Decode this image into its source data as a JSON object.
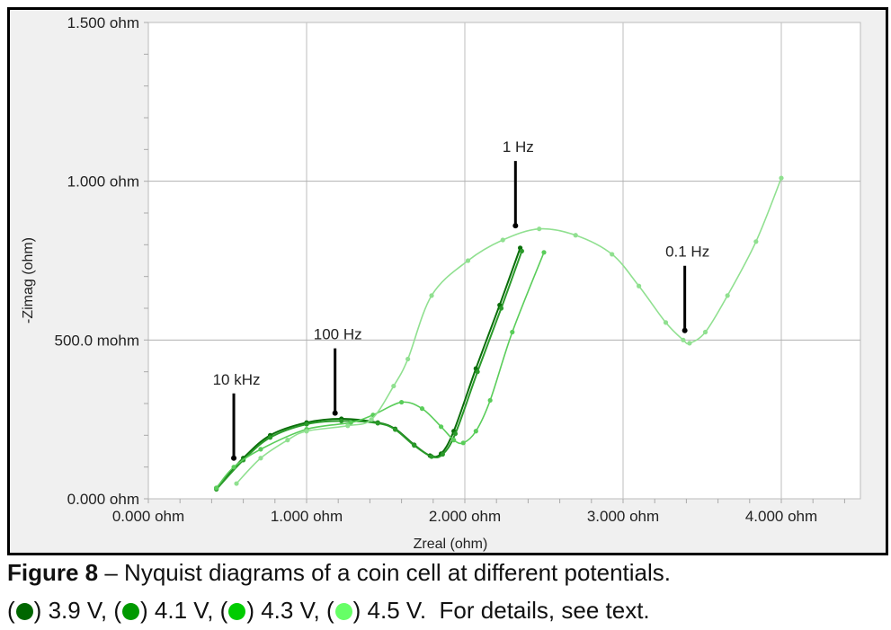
{
  "caption": {
    "figure_label": "Figure 8",
    "text": " – Nyquist diagrams of a coin cell at different potentials.",
    "legend": [
      {
        "label": "3.9 V,",
        "color": "#006600"
      },
      {
        "label": "4.1 V,",
        "color": "#009900"
      },
      {
        "label": "4.3 V,",
        "color": "#00cc00"
      },
      {
        "label": "4.5 V.",
        "color": "#66ff66"
      }
    ],
    "details": "For details, see text."
  },
  "chart_data": {
    "type": "scatter",
    "title": "",
    "xlabel": "Zreal (ohm)",
    "ylabel": "-Zimag (ohm)",
    "xlim": [
      0,
      4.5
    ],
    "ylim": [
      0,
      1.5
    ],
    "grid": true,
    "x_ticks": [
      {
        "value": 0,
        "label": "0.000 ohm"
      },
      {
        "value": 1,
        "label": "1.000 ohm"
      },
      {
        "value": 2,
        "label": "2.000 ohm"
      },
      {
        "value": 3,
        "label": "3.000 ohm"
      },
      {
        "value": 4,
        "label": "4.000 ohm"
      }
    ],
    "y_ticks": [
      {
        "value": 0,
        "label": "0.000 ohm"
      },
      {
        "value": 0.5,
        "label": "500.0 mohm"
      },
      {
        "value": 1.0,
        "label": "1.000 ohm"
      },
      {
        "value": 1.5,
        "label": "1.500 ohm"
      }
    ],
    "series": [
      {
        "name": "3.9 V",
        "line_color": "#0a6e0a",
        "x": [
          0.43,
          0.6,
          0.77,
          1.0,
          1.22,
          1.45,
          1.56,
          1.68,
          1.78,
          1.85,
          1.93,
          2.07,
          2.22,
          2.35
        ],
        "y": [
          0.034,
          0.128,
          0.2,
          0.24,
          0.252,
          0.24,
          0.22,
          0.17,
          0.136,
          0.142,
          0.213,
          0.41,
          0.61,
          0.79
        ]
      },
      {
        "name": "4.1 V",
        "line_color": "#2a9a2a",
        "x": [
          0.43,
          0.6,
          0.77,
          1.0,
          1.22,
          1.45,
          1.56,
          1.68,
          1.79,
          1.86,
          1.94,
          2.08,
          2.23,
          2.36
        ],
        "y": [
          0.03,
          0.122,
          0.193,
          0.235,
          0.245,
          0.238,
          0.218,
          0.168,
          0.133,
          0.14,
          0.205,
          0.4,
          0.6,
          0.78
        ]
      },
      {
        "name": "4.3 V",
        "line_color": "#5acd5a",
        "x": [
          0.43,
          0.54,
          0.71,
          1.0,
          1.28,
          1.42,
          1.6,
          1.73,
          1.85,
          1.93,
          1.99,
          2.07,
          2.16,
          2.3,
          2.5
        ],
        "y": [
          0.034,
          0.1,
          0.156,
          0.219,
          0.24,
          0.264,
          0.304,
          0.284,
          0.227,
          0.185,
          0.176,
          0.213,
          0.31,
          0.525,
          0.776
        ]
      },
      {
        "name": "4.5 V",
        "line_color": "#90e090",
        "x": [
          0.557,
          0.71,
          0.88,
          1.0,
          1.26,
          1.41,
          1.55,
          1.64,
          1.79,
          2.02,
          2.24,
          2.47,
          2.7,
          2.93,
          3.1,
          3.27,
          3.38,
          3.42,
          3.52,
          3.66,
          3.84,
          4.0
        ],
        "y": [
          0.048,
          0.128,
          0.185,
          0.213,
          0.23,
          0.25,
          0.355,
          0.44,
          0.64,
          0.75,
          0.815,
          0.85,
          0.83,
          0.77,
          0.67,
          0.555,
          0.5,
          0.49,
          0.525,
          0.64,
          0.81,
          1.01
        ]
      }
    ],
    "annotations": [
      {
        "text": "10 kHz",
        "x": 0.54,
        "y": 0.128
      },
      {
        "text": "100 Hz",
        "x": 1.18,
        "y": 0.27
      },
      {
        "text": "1 Hz",
        "x": 2.32,
        "y": 0.86
      },
      {
        "text": "0.1 Hz",
        "x": 3.39,
        "y": 0.53
      }
    ]
  }
}
